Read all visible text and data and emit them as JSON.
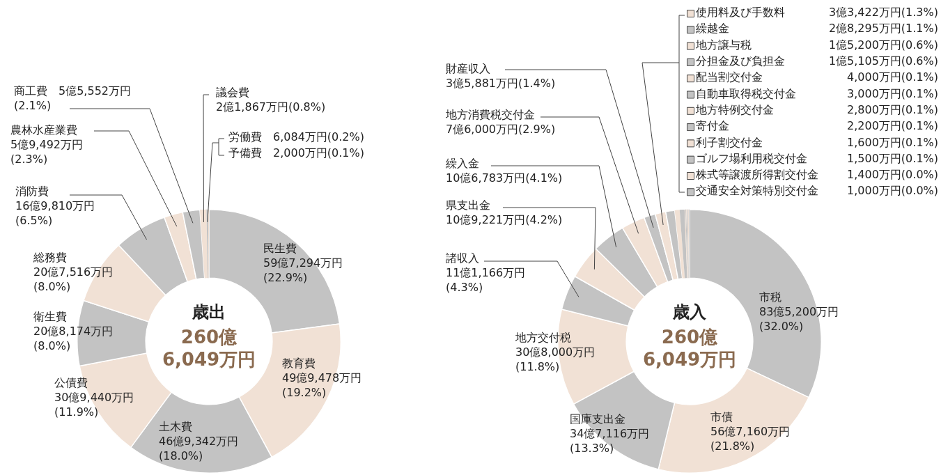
{
  "chart_data": [
    {
      "type": "donut",
      "title": "歳出",
      "annotations": [
        "260億6,049万円"
      ],
      "categories": [
        "民生費",
        "教育費",
        "土木費",
        "公債費",
        "衛生費",
        "総務費",
        "消防費",
        "農林水産業費",
        "商工費",
        "議会費",
        "労働費",
        "予備費"
      ],
      "values": [
        22.9,
        19.2,
        18.0,
        11.9,
        8.0,
        8.0,
        6.5,
        2.3,
        2.1,
        0.8,
        0.2,
        0.1
      ],
      "value_labels": [
        "59億7,294万円(22.9%)",
        "49億9,478万円(19.2%)",
        "46億9,342万円(18.0%)",
        "30億9,440万円(11.9%)",
        "20億8,174万円(8.0%)",
        "20億7,516万円(8.0%)",
        "16億9,810万円(6.5%)",
        "5億9,492万円(2.3%)",
        "5億5,552万円(2.1%)",
        "2億1,867万円(0.8%)",
        "6,084万円(0.2%)",
        "2,000万円(0.1%)"
      ],
      "colors": [
        "#c3c3c3",
        "#f1e1d5",
        "#c3c3c3",
        "#f1e1d5",
        "#c3c3c3",
        "#f1e1d5",
        "#c3c3c3",
        "#f1e1d5",
        "#c3c3c3",
        "#f1e1d5",
        "#c3c3c3",
        "#f1e1d5"
      ]
    },
    {
      "type": "donut",
      "title": "歳入",
      "annotations": [
        "260億6,049万円"
      ],
      "legend": "top right",
      "categories": [
        "市税",
        "市債",
        "国庫支出金",
        "地方交付税",
        "諸収入",
        "県支出金",
        "繰入金",
        "地方消費税交付金",
        "財産収入",
        "使用料及び手数料",
        "繰越金",
        "地方譲与税",
        "分担金及び負担金",
        "配当割交付金",
        "自動車取得税交付金",
        "地方特例交付金",
        "寄付金",
        "利子割交付金",
        "ゴルフ場利用税交付金",
        "株式等譲渡所得割交付金",
        "交通安全対策特別交付金"
      ],
      "values": [
        32.0,
        21.8,
        13.3,
        11.8,
        4.3,
        4.2,
        4.1,
        2.9,
        1.4,
        1.3,
        1.1,
        0.6,
        0.6,
        0.1,
        0.1,
        0.1,
        0.1,
        0.1,
        0.1,
        0.0,
        0.0
      ],
      "value_labels": [
        "83億5,200万円(32.0%)",
        "56億7,160万円(21.8%)",
        "34億7,116万円(13.3%)",
        "30億8,000万円(11.8%)",
        "11億1,166万円(4.3%)",
        "10億9,221万円(4.2%)",
        "10億6,783万円(4.1%)",
        "7億6,000万円(2.9%)",
        "3億5,881万円(1.4%)",
        "3億3,422万円(1.3%)",
        "2億8,295万円(1.1%)",
        "1億5,200万円(0.6%)",
        "1億5,105万円(0.6%)",
        "4,000万円(0.1%)",
        "3,000万円(0.1%)",
        "2,800万円(0.1%)",
        "2,200万円(0.1%)",
        "1,600万円(0.1%)",
        "1,500万円(0.1%)",
        "1,400万円(0.0%)",
        "1,000万円(0.0%)"
      ],
      "colors": [
        "#c3c3c3",
        "#f1e1d5",
        "#c3c3c3",
        "#f1e1d5",
        "#c3c3c3",
        "#f1e1d5",
        "#c3c3c3",
        "#f1e1d5",
        "#c3c3c3",
        "#f1e1d5",
        "#c3c3c3",
        "#f1e1d5",
        "#c3c3c3",
        "#f1e1d5",
        "#c3c3c3",
        "#f1e1d5",
        "#c3c3c3",
        "#f1e1d5",
        "#c3c3c3",
        "#f1e1d5",
        "#c3c3c3"
      ]
    }
  ]
}
